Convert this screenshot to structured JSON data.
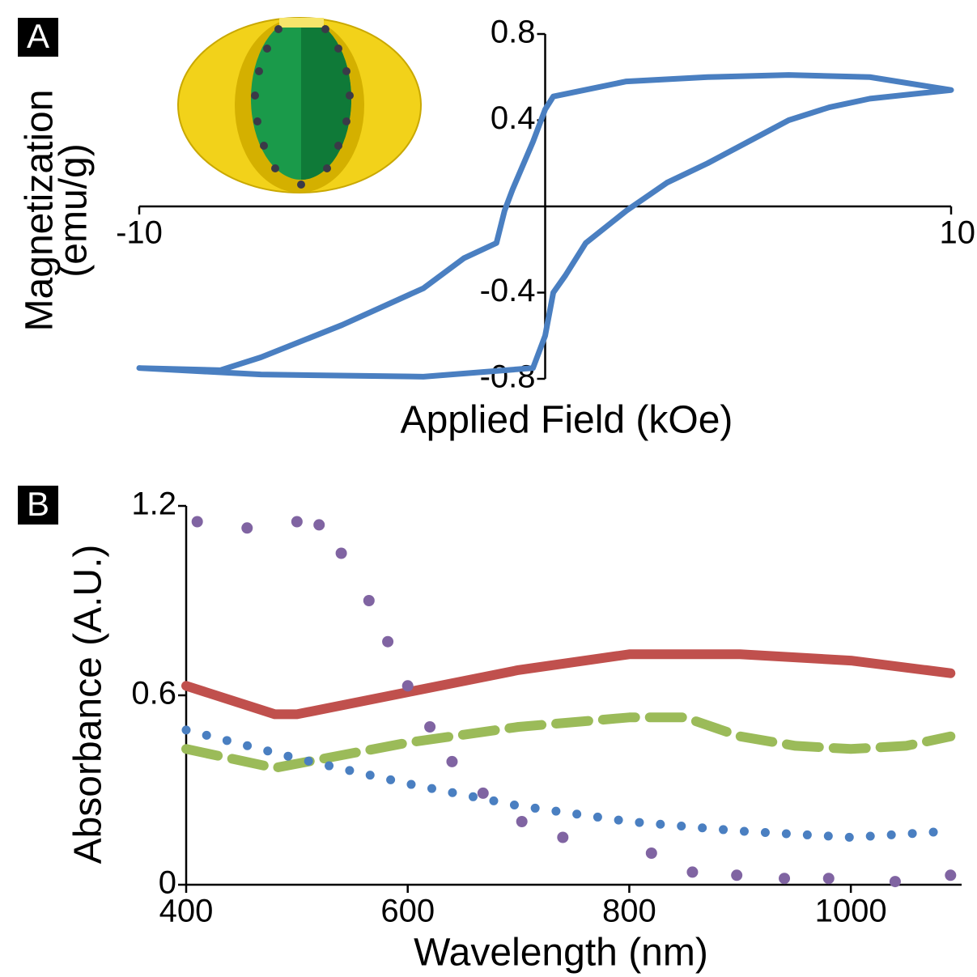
{
  "chart_data": [
    {
      "type": "line",
      "panel": "A",
      "xlabel": "Applied Field (kOe)",
      "ylabel": [
        "Magnetization",
        "(emu/g)"
      ],
      "xlim": [
        -10,
        10
      ],
      "ylim": [
        -0.8,
        0.8
      ],
      "xticks": [
        -10,
        10
      ],
      "yticks": [
        0.8,
        0.4,
        -0.4,
        -0.8
      ],
      "axes_cross_zero": true,
      "series": [
        {
          "color": "#4a7fc1",
          "line_style": "solid",
          "x": [
            10,
            8,
            6,
            4,
            2,
            0.2,
            0,
            -0.3,
            -0.8,
            -1,
            -1.2,
            -2,
            -3,
            -5,
            -7,
            -8,
            -10,
            -7,
            -3,
            -0.3,
            0,
            0.2,
            0.5,
            1,
            2,
            3,
            4,
            5,
            6,
            7,
            8,
            10
          ],
          "values": [
            0.54,
            0.6,
            0.61,
            0.6,
            0.58,
            0.51,
            0.45,
            0.3,
            0.08,
            -0.02,
            -0.17,
            -0.24,
            -0.38,
            -0.55,
            -0.7,
            -0.76,
            -0.75,
            -0.78,
            -0.79,
            -0.75,
            -0.6,
            -0.4,
            -0.32,
            -0.17,
            -0.02,
            0.11,
            0.2,
            0.3,
            0.4,
            0.46,
            0.5,
            0.54
          ]
        }
      ]
    },
    {
      "type": "line",
      "panel": "B",
      "xlabel": "Wavelength (nm)",
      "ylabel": "Absorbance (A.U.)",
      "xlim": [
        400,
        1100
      ],
      "ylim": [
        0,
        1.2
      ],
      "xticks": [
        400,
        600,
        800,
        1000
      ],
      "yticks": [
        0,
        0.6,
        1.2
      ],
      "axes_cross_zero": false,
      "series": [
        {
          "color": "#c0504d",
          "line_style": "solid",
          "x": [
            400,
            480,
            500,
            600,
            700,
            800,
            850,
            900,
            1000,
            1090
          ],
          "values": [
            0.63,
            0.54,
            0.54,
            0.61,
            0.68,
            0.73,
            0.73,
            0.73,
            0.71,
            0.67
          ]
        },
        {
          "color": "#9bbb59",
          "line_style": "dashed",
          "x": [
            400,
            480,
            600,
            700,
            800,
            850,
            900,
            950,
            1000,
            1050,
            1090
          ],
          "values": [
            0.43,
            0.37,
            0.45,
            0.5,
            0.53,
            0.53,
            0.47,
            0.44,
            0.43,
            0.44,
            0.47
          ]
        },
        {
          "color": "#4a7fc1",
          "line_style": "dotted",
          "x": [
            400,
            500,
            600,
            700,
            800,
            900,
            1000,
            1090
          ],
          "values": [
            0.49,
            0.4,
            0.32,
            0.25,
            0.2,
            0.17,
            0.15,
            0.17
          ]
        },
        {
          "color": "#8064a2",
          "line_style": "markers",
          "x": [
            410,
            455,
            500,
            520,
            540,
            565,
            582,
            600,
            620,
            640,
            668,
            703,
            740,
            820,
            857,
            897,
            940,
            980,
            1040,
            1090
          ],
          "values": [
            1.15,
            1.13,
            1.15,
            1.14,
            1.05,
            0.9,
            0.77,
            0.63,
            0.5,
            0.39,
            0.29,
            0.2,
            0.15,
            0.1,
            0.04,
            0.03,
            0.02,
            0.02,
            0.01,
            0.03
          ]
        }
      ]
    }
  ]
}
